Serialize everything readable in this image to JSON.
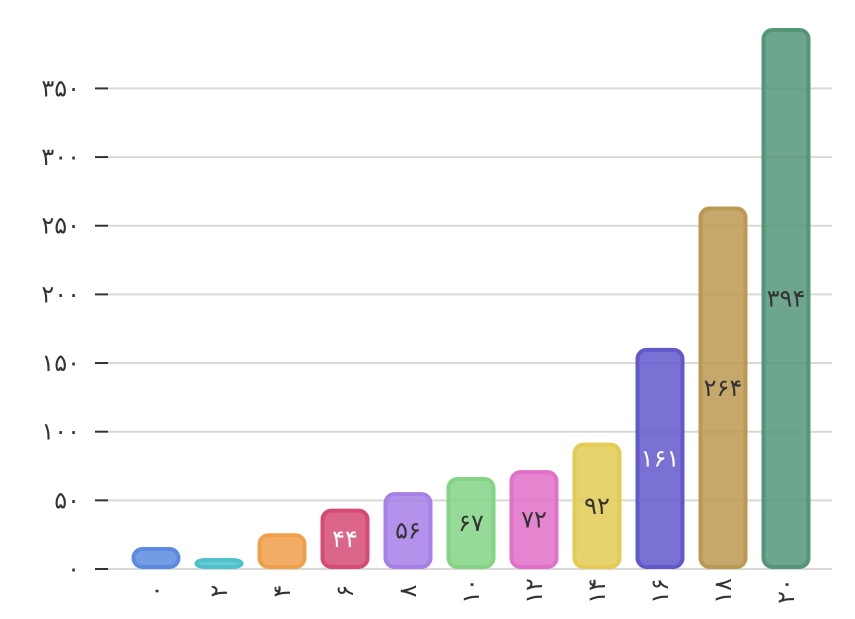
{
  "chart_data": {
    "type": "bar",
    "categories": [
      "۰",
      "۲",
      "۴",
      "۶",
      "۸",
      "۱۰",
      "۱۲",
      "۱۴",
      "۱۶",
      "۱۸",
      "۲۰"
    ],
    "values": [
      16,
      8,
      26,
      44,
      56,
      67,
      72,
      92,
      161,
      264,
      394
    ],
    "value_labels": [
      "",
      "",
      "",
      "۴۴",
      "۵۶",
      "۶۷",
      "۷۲",
      "۹۲",
      "۱۶۱",
      "۲۶۴",
      "۳۹۴"
    ],
    "colors": [
      "#5b8be0",
      "#4fc1cb",
      "#f0a04b",
      "#d64b74",
      "#a77fe8",
      "#83d585",
      "#e070c8",
      "#e3cb54",
      "#6158cb",
      "#bc9952",
      "#55957a"
    ],
    "label_colors": [
      "#333333",
      "#333333",
      "#333333",
      "#ffffff",
      "#333333",
      "#333333",
      "#333333",
      "#333333",
      "#ffffff",
      "#333333",
      "#333333"
    ],
    "y_ticks": [
      0,
      50,
      100,
      150,
      200,
      250,
      300,
      350
    ],
    "y_tick_labels": [
      "۰",
      "۵۰",
      "۱۰۰",
      "۱۵۰",
      "۲۰۰",
      "۲۵۰",
      "۳۰۰",
      "۳۵۰"
    ],
    "ylim": [
      0,
      394
    ],
    "grid": true,
    "legend": false,
    "title": "",
    "xlabel": "",
    "ylabel": ""
  }
}
